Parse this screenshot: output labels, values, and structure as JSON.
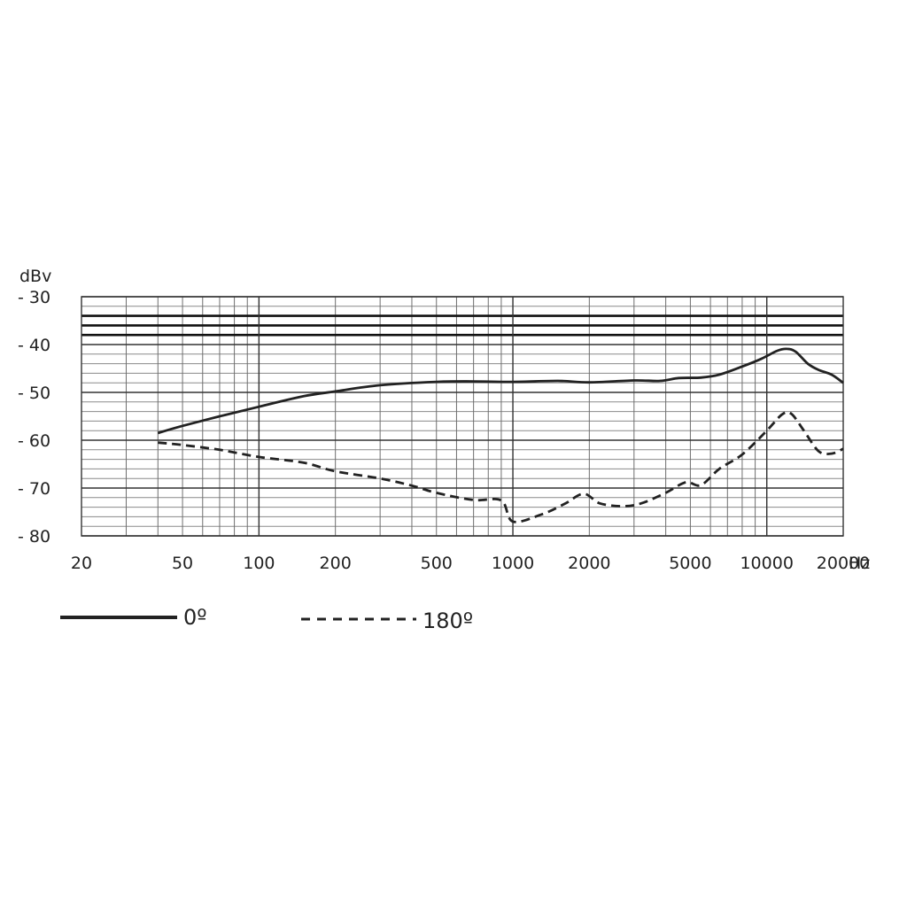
{
  "chart_data": {
    "type": "line",
    "ylabel": "dBv",
    "xunit": "Hz",
    "xscale": "log",
    "xlim": [
      20,
      20000
    ],
    "ylim": [
      -80,
      -30
    ],
    "x_ticks": [
      20,
      50,
      100,
      200,
      500,
      1000,
      2000,
      5000,
      10000,
      20000
    ],
    "x_tick_labels": [
      "20",
      "50",
      "100",
      "200",
      "500",
      "1000",
      "2000",
      "5000",
      "10000",
      "20000"
    ],
    "y_ticks": [
      -30,
      -40,
      -50,
      -60,
      -70,
      -80
    ],
    "y_tick_labels": [
      "- 30",
      "- 40",
      "- 50",
      "- 60",
      "- 70",
      "- 80"
    ],
    "grid": true,
    "legend_position": "bottom-left",
    "series": [
      {
        "name": "0º",
        "style": "solid",
        "color": "#222222",
        "points": [
          [
            40,
            -58.5
          ],
          [
            50,
            -57
          ],
          [
            70,
            -55
          ],
          [
            100,
            -53
          ],
          [
            150,
            -50.8
          ],
          [
            200,
            -49.8
          ],
          [
            300,
            -48.5
          ],
          [
            500,
            -47.8
          ],
          [
            700,
            -47.7
          ],
          [
            1000,
            -47.8
          ],
          [
            1500,
            -47.6
          ],
          [
            2000,
            -47.9
          ],
          [
            3000,
            -47.5
          ],
          [
            3800,
            -47.6
          ],
          [
            4500,
            -47
          ],
          [
            5500,
            -46.9
          ],
          [
            6500,
            -46.3
          ],
          [
            8000,
            -44.6
          ],
          [
            9500,
            -43
          ],
          [
            11000,
            -41.3
          ],
          [
            12000,
            -40.9
          ],
          [
            13000,
            -41.5
          ],
          [
            14500,
            -44
          ],
          [
            16000,
            -45.3
          ],
          [
            18000,
            -46.3
          ],
          [
            20000,
            -48
          ]
        ]
      },
      {
        "name": "180º",
        "style": "dashed",
        "color": "#222222",
        "points": [
          [
            40,
            -60.5
          ],
          [
            50,
            -61
          ],
          [
            70,
            -62
          ],
          [
            100,
            -63.5
          ],
          [
            150,
            -64.7
          ],
          [
            200,
            -66.5
          ],
          [
            300,
            -68
          ],
          [
            400,
            -69.5
          ],
          [
            500,
            -71
          ],
          [
            700,
            -72.5
          ],
          [
            900,
            -72.6
          ],
          [
            1000,
            -77
          ],
          [
            1300,
            -75.5
          ],
          [
            1600,
            -73.3
          ],
          [
            1900,
            -71.2
          ],
          [
            2200,
            -73.2
          ],
          [
            2700,
            -73.8
          ],
          [
            3200,
            -73.2
          ],
          [
            4000,
            -71
          ],
          [
            4800,
            -68.8
          ],
          [
            5500,
            -69.4
          ],
          [
            6500,
            -66
          ],
          [
            8000,
            -63
          ],
          [
            10000,
            -58
          ],
          [
            11500,
            -54.6
          ],
          [
            12500,
            -54.5
          ],
          [
            14000,
            -58
          ],
          [
            16000,
            -62.3
          ],
          [
            18000,
            -62.8
          ],
          [
            20000,
            -61.8
          ]
        ]
      }
    ]
  }
}
